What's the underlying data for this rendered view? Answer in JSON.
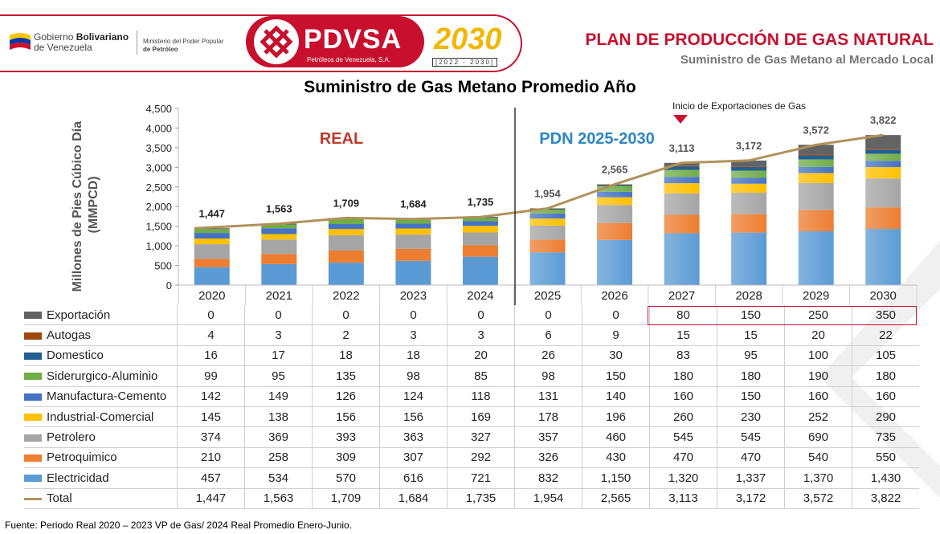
{
  "header": {
    "gov_name_1": "Gobierno ",
    "gov_name_bold": "Bolivariano",
    "gov_name_2": "de Venezuela",
    "ministry_1": "Ministerio del Poder Popular",
    "ministry_2": "de Petróleo",
    "company": "PDVSA",
    "company_full": "Petróleos de Venezuela, S.A.",
    "emblem_number": "2030",
    "emblem_years": "[2022 - 2030]",
    "title": "PLAN DE PRODUCCIÓN DE GAS NATURAL",
    "subtitle": "Suministro de Gas Metano al Mercado Local"
  },
  "colors": {
    "brand_red": "#c8102e",
    "real_label": "#c0392b",
    "pdn_label": "#2e86c1",
    "total_line": "#b0925a"
  },
  "chart_data": {
    "type": "bar",
    "stacked": true,
    "title": "Suministro de Gas Metano Promedio Año",
    "ylabel": "Millones de Pies Cúbico Día (MMPCD)",
    "ylim": [
      0,
      4500
    ],
    "yticks": [
      "0",
      "500",
      "1,000",
      "1,500",
      "2,000",
      "2,500",
      "3,000",
      "3,500",
      "4,000",
      "4,500"
    ],
    "categories": [
      "2020",
      "2021",
      "2022",
      "2023",
      "2024",
      "2025",
      "2026",
      "2027",
      "2028",
      "2029",
      "2030"
    ],
    "real_label": "REAL",
    "plan_label": "PDN 2025-2030",
    "annotation": "Inicio de Exportaciones de Gas",
    "series": [
      {
        "name": "Electricidad",
        "color": "#5b9bd5",
        "values": [
          457,
          534,
          570,
          616,
          721,
          832,
          1150,
          1320,
          1337,
          1370,
          1430
        ],
        "display": [
          "457",
          "534",
          "570",
          "616",
          "721",
          "832",
          "1,150",
          "1,320",
          "1,337",
          "1,370",
          "1,430"
        ]
      },
      {
        "name": "Petroquimico",
        "color": "#ed7d31",
        "values": [
          210,
          258,
          309,
          307,
          292,
          326,
          430,
          470,
          470,
          540,
          550
        ],
        "display": [
          "210",
          "258",
          "309",
          "307",
          "292",
          "326",
          "430",
          "470",
          "470",
          "540",
          "550"
        ]
      },
      {
        "name": "Petrolero",
        "color": "#a5a5a5",
        "values": [
          374,
          369,
          393,
          363,
          327,
          357,
          460,
          545,
          545,
          690,
          735
        ],
        "display": [
          "374",
          "369",
          "393",
          "363",
          "327",
          "357",
          "460",
          "545",
          "545",
          "690",
          "735"
        ]
      },
      {
        "name": "Industrial-Comercial",
        "color": "#ffc000",
        "values": [
          145,
          138,
          156,
          156,
          169,
          178,
          196,
          260,
          230,
          252,
          290
        ],
        "display": [
          "145",
          "138",
          "156",
          "156",
          "169",
          "178",
          "196",
          "260",
          "230",
          "252",
          "290"
        ]
      },
      {
        "name": "Manufactura-Cemento",
        "color": "#4472c4",
        "values": [
          142,
          149,
          126,
          124,
          118,
          131,
          140,
          160,
          150,
          160,
          160
        ],
        "display": [
          "142",
          "149",
          "126",
          "124",
          "118",
          "131",
          "140",
          "160",
          "150",
          "160",
          "160"
        ]
      },
      {
        "name": "Siderurgico-Aluminio",
        "color": "#70ad47",
        "values": [
          99,
          95,
          135,
          98,
          85,
          98,
          150,
          180,
          180,
          190,
          180
        ],
        "display": [
          "99",
          "95",
          "135",
          "98",
          "85",
          "98",
          "150",
          "180",
          "180",
          "190",
          "180"
        ]
      },
      {
        "name": "Domestico",
        "color": "#255e91",
        "values": [
          16,
          17,
          18,
          18,
          20,
          26,
          30,
          83,
          95,
          100,
          105
        ],
        "display": [
          "16",
          "17",
          "18",
          "18",
          "20",
          "26",
          "30",
          "83",
          "95",
          "100",
          "105"
        ]
      },
      {
        "name": "Autogas",
        "color": "#9e480e",
        "values": [
          4,
          3,
          2,
          3,
          3,
          6,
          9,
          15,
          15,
          20,
          22
        ],
        "display": [
          "4",
          "3",
          "2",
          "3",
          "3",
          "6",
          "9",
          "15",
          "15",
          "20",
          "22"
        ]
      },
      {
        "name": "Exportación",
        "color": "#636363",
        "values": [
          0,
          0,
          0,
          0,
          0,
          0,
          0,
          80,
          150,
          250,
          350
        ],
        "display": [
          "0",
          "0",
          "0",
          "0",
          "0",
          "0",
          "0",
          "80",
          "150",
          "250",
          "350"
        ]
      }
    ],
    "total": {
      "name": "Total",
      "values": [
        1447,
        1563,
        1709,
        1684,
        1735,
        1954,
        2565,
        3113,
        3172,
        3572,
        3822
      ],
      "display": [
        "1,447",
        "1,563",
        "1,709",
        "1,684",
        "1,735",
        "1,954",
        "2,565",
        "3,113",
        "3,172",
        "3,572",
        "3,822"
      ]
    }
  },
  "footer": "Fuente: Periodo Real 2020 – 2023 VP de Gas/  2024 Real Promedio Enero-Junio."
}
